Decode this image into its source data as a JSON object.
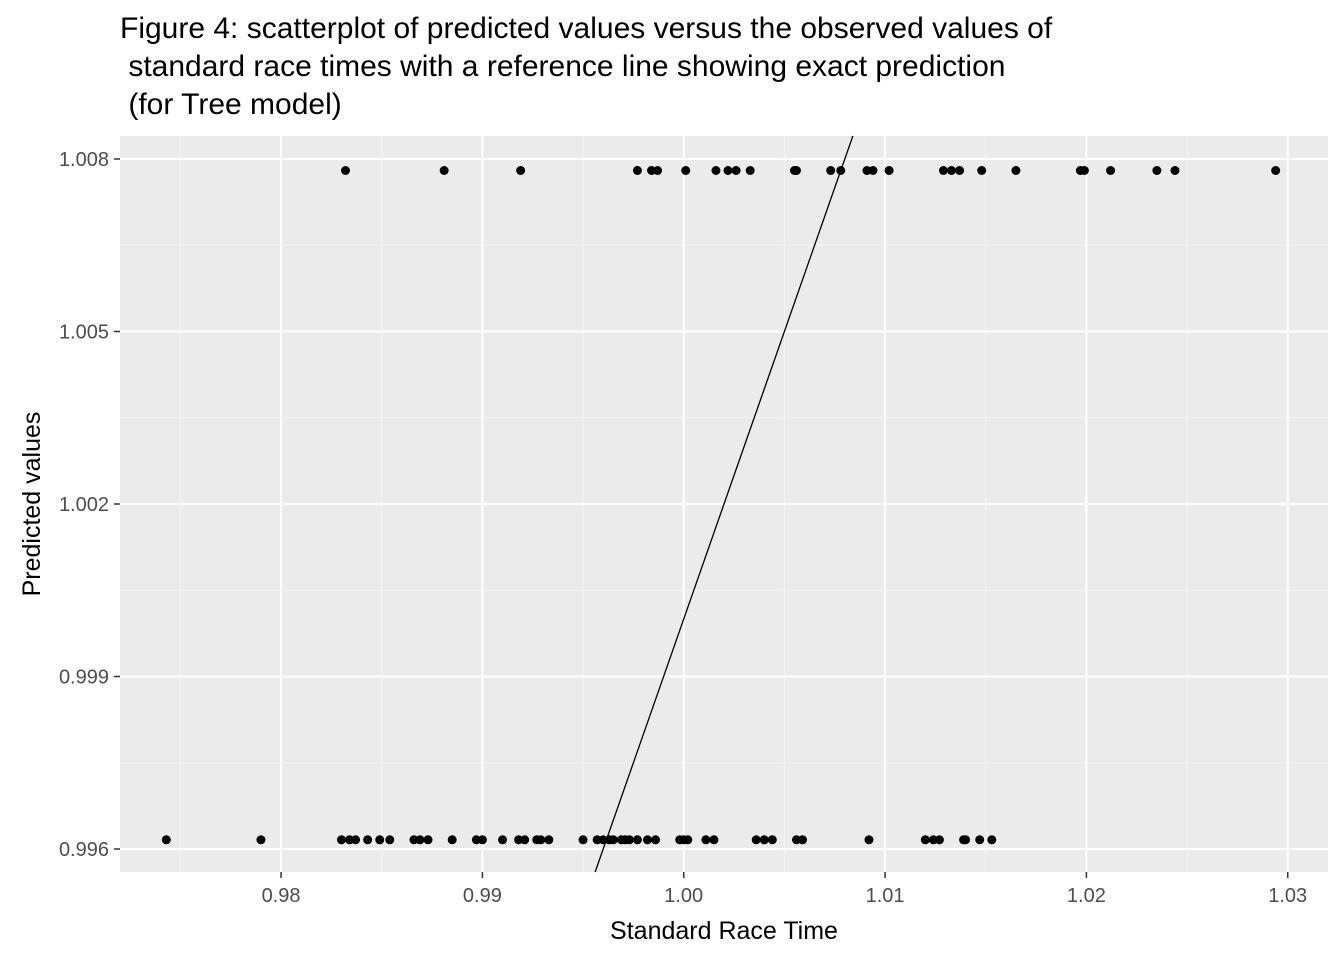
{
  "chart_data": {
    "type": "scatter",
    "title": "Figure 4: scatterplot of predicted values versus the observed values of\n standard race times with a reference line showing exact prediction\n (for Tree model)",
    "xlabel": "Standard Race Time",
    "ylabel": "Predicted values",
    "xlim": [
      0.972,
      1.032
    ],
    "ylim": [
      0.9956,
      1.0084
    ],
    "x_ticks": [
      0.98,
      0.99,
      1.0,
      1.01,
      1.02,
      1.03
    ],
    "x_tick_labels": [
      "0.98",
      "0.99",
      "1.00",
      "1.01",
      "1.02",
      "1.03"
    ],
    "y_ticks": [
      0.996,
      0.999,
      1.002,
      1.005,
      1.008
    ],
    "y_tick_labels": [
      "0.996",
      "0.999",
      "1.002",
      "1.005",
      "1.008"
    ],
    "grid": true,
    "reference_line": {
      "slope": 1,
      "intercept": 0
    },
    "series": [
      {
        "y": 1.0078,
        "x": [
          0.9832,
          0.9881,
          0.9919,
          0.9977,
          0.9984,
          0.9987,
          1.0001,
          1.0016,
          1.0022,
          1.0026,
          1.0033,
          1.0055,
          1.0056,
          1.0073,
          1.0078,
          1.0091,
          1.0094,
          1.0102,
          1.0129,
          1.0133,
          1.0137,
          1.0148,
          1.0165,
          1.0197,
          1.0199,
          1.0212,
          1.0235,
          1.0244,
          1.0294
        ]
      },
      {
        "y": 0.99616,
        "x": [
          0.9743,
          0.979,
          0.983,
          0.9834,
          0.9837,
          0.9843,
          0.9849,
          0.9854,
          0.9866,
          0.9869,
          0.9873,
          0.9885,
          0.9897,
          0.99,
          0.991,
          0.9918,
          0.9921,
          0.9927,
          0.9929,
          0.9933,
          0.995,
          0.9957,
          0.996,
          0.9963,
          0.9965,
          0.9969,
          0.9971,
          0.9973,
          0.9977,
          0.9982,
          0.9986,
          0.9998,
          1.0,
          1.0002,
          1.0011,
          1.0015,
          1.0036,
          1.004,
          1.0044,
          1.0056,
          1.0059,
          1.0092,
          1.012,
          1.0124,
          1.0127,
          1.0139,
          1.014,
          1.0147,
          1.0153
        ]
      }
    ],
    "colors": {
      "panel_background": "#ebebeb",
      "grid_major": "#ffffff",
      "grid_minor": "#f5f5f5",
      "points": "#000000",
      "reference_line": "#000000",
      "tick_label": "#4d4d4d",
      "tick_mark": "#333333"
    }
  }
}
